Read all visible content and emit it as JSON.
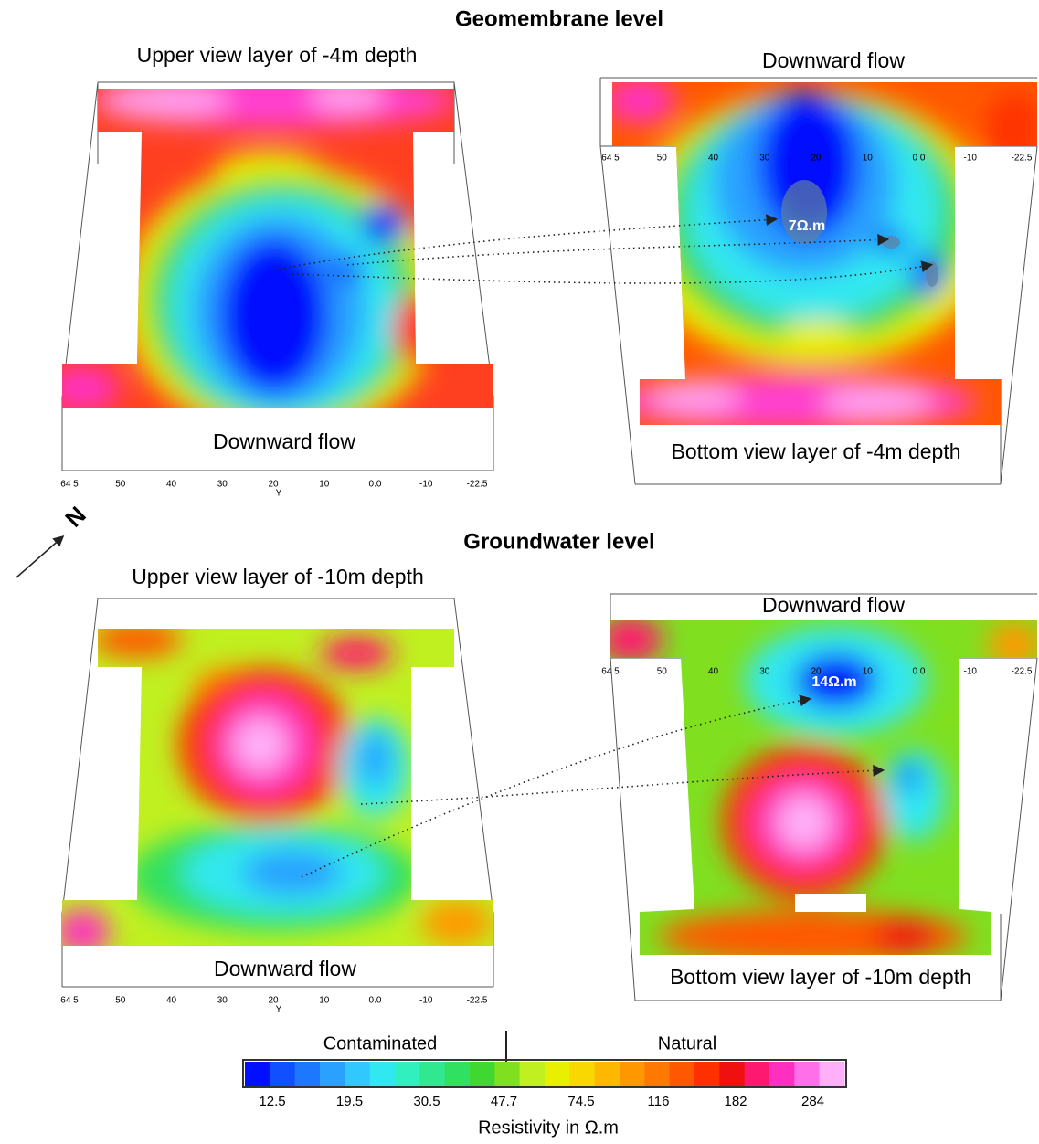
{
  "sections": [
    {
      "title": "Geomembrane level",
      "left": {
        "caption": "Upper view layer of -4m depth",
        "flow": "Downward flow",
        "y_ticks": [
          "64 5",
          "50",
          "40",
          "30",
          "20",
          "10",
          "0.0",
          "-10",
          "-22.5"
        ],
        "y_label": "Y"
      },
      "right": {
        "flow": "Downward flow",
        "caption": "Bottom view layer of -4m depth",
        "annotation": "7Ω.m",
        "y_ticks": [
          "64 5",
          "50",
          "40",
          "30",
          "20",
          "10",
          "0 0",
          "-10",
          "-22.5"
        ]
      }
    },
    {
      "title": "Groundwater level",
      "left": {
        "caption": "Upper view layer of -10m depth",
        "flow": "Downward flow",
        "y_ticks": [
          "64 5",
          "50",
          "40",
          "30",
          "20",
          "10",
          "0.0",
          "-10",
          "-22.5"
        ],
        "y_label": "Y"
      },
      "right": {
        "flow": "Downward flow",
        "caption": "Bottom view layer of -10m depth",
        "annotation": "14Ω.m",
        "y_ticks": [
          "64 5",
          "50",
          "40",
          "30",
          "20",
          "10",
          "0 0",
          "-10",
          "-22.5"
        ]
      }
    }
  ],
  "north": "N",
  "colorbar": {
    "left_label": "Contaminated",
    "right_label": "Natural",
    "ticks": [
      12.5,
      19.5,
      30.5,
      47.7,
      74.5,
      116,
      182,
      284
    ],
    "title": "Resistivity in Ω.m",
    "colorscale": [
      "#0010ff",
      "#1050ff",
      "#1c78ff",
      "#2aa0ff",
      "#30c8ff",
      "#30e8f0",
      "#30f0c0",
      "#30e890",
      "#30e060",
      "#40d830",
      "#80e020",
      "#c0f020",
      "#e8f000",
      "#f8d800",
      "#ffb800",
      "#ff9800",
      "#ff7800",
      "#ff5800",
      "#ff3000",
      "#f01010",
      "#ff1870",
      "#ff30c0",
      "#ff70e8",
      "#ffb0f8"
    ]
  }
}
